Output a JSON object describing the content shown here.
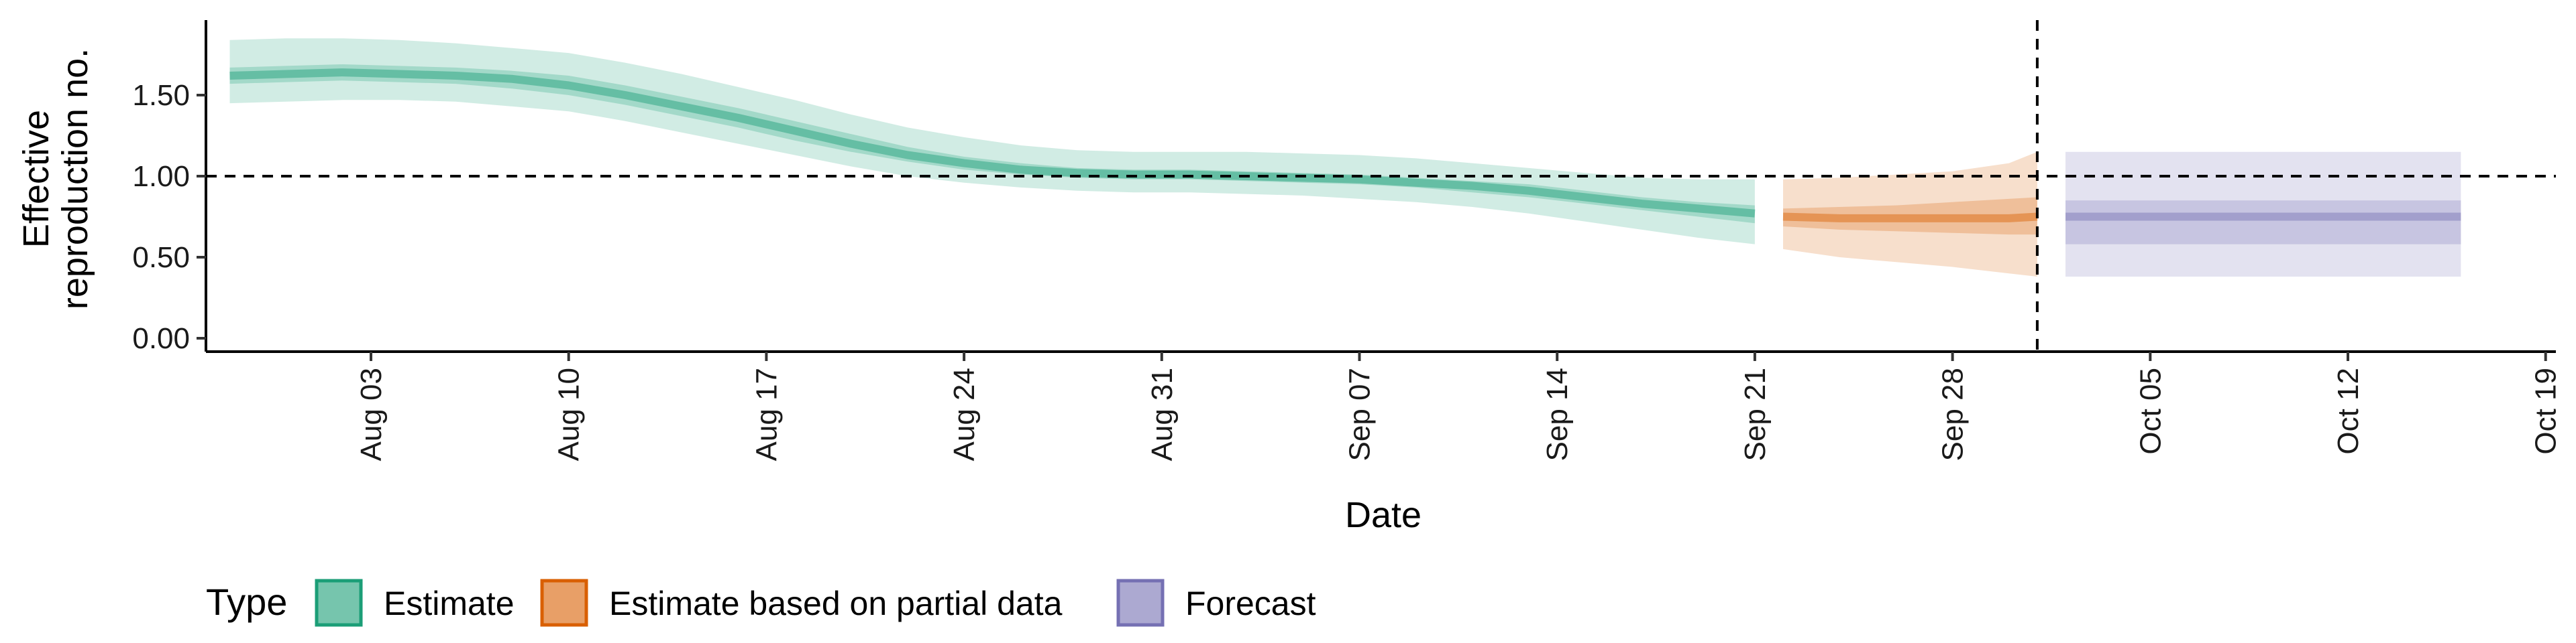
{
  "chart_data": {
    "type": "line",
    "xlabel": "Date",
    "ylabel_lines": [
      "Effective",
      "reproduction no."
    ],
    "ylim": [
      0,
      1.95
    ],
    "xlim": [
      "2021-07-29",
      "2021-10-19"
    ],
    "y_ticks": [
      0,
      0.5,
      1.0,
      1.5
    ],
    "y_tick_labels": [
      "0.00",
      "0.50",
      "1.00",
      "1.50"
    ],
    "x_ticks": [
      "2021-08-03",
      "2021-08-10",
      "2021-08-17",
      "2021-08-24",
      "2021-08-31",
      "2021-09-07",
      "2021-09-14",
      "2021-09-21",
      "2021-09-28",
      "2021-10-05",
      "2021-10-12",
      "2021-10-19"
    ],
    "x_tick_labels": [
      "Aug 03",
      "Aug 10",
      "Aug 17",
      "Aug 24",
      "Aug 31",
      "Sep 07",
      "Sep 14",
      "Sep 21",
      "Sep 28",
      "Oct 05",
      "Oct 12",
      "Oct 19"
    ],
    "reference_hline": 1.0,
    "reference_vline": "2021-10-01",
    "grid": false,
    "legend": {
      "title": "Type",
      "position": "bottom-left",
      "entries": [
        {
          "label": "Estimate",
          "fill": "#1b9e77",
          "color": "#1b9e77"
        },
        {
          "label": "Estimate based on partial data",
          "fill": "#d95f02",
          "color": "#d95f02"
        },
        {
          "label": "Forecast",
          "fill": "#7570b3",
          "color": "#7570b3"
        }
      ]
    },
    "series": [
      {
        "name": "Estimate",
        "color": "#1b9e77",
        "x": [
          "2021-07-29",
          "2021-07-31",
          "2021-08-02",
          "2021-08-04",
          "2021-08-06",
          "2021-08-08",
          "2021-08-10",
          "2021-08-12",
          "2021-08-14",
          "2021-08-16",
          "2021-08-18",
          "2021-08-20",
          "2021-08-22",
          "2021-08-24",
          "2021-08-26",
          "2021-08-28",
          "2021-08-30",
          "2021-09-01",
          "2021-09-03",
          "2021-09-05",
          "2021-09-07",
          "2021-09-09",
          "2021-09-11",
          "2021-09-13",
          "2021-09-15",
          "2021-09-17",
          "2021-09-19",
          "2021-09-21"
        ],
        "median": [
          1.62,
          1.63,
          1.64,
          1.63,
          1.62,
          1.6,
          1.56,
          1.5,
          1.43,
          1.36,
          1.28,
          1.2,
          1.13,
          1.08,
          1.04,
          1.02,
          1.01,
          1.01,
          1.0,
          0.99,
          0.98,
          0.96,
          0.94,
          0.91,
          0.87,
          0.83,
          0.8,
          0.77
        ],
        "inner_lower": [
          1.57,
          1.58,
          1.59,
          1.58,
          1.57,
          1.54,
          1.5,
          1.44,
          1.37,
          1.3,
          1.22,
          1.15,
          1.09,
          1.04,
          1.01,
          0.99,
          0.98,
          0.98,
          0.97,
          0.96,
          0.95,
          0.93,
          0.9,
          0.87,
          0.83,
          0.79,
          0.75,
          0.71
        ],
        "inner_upper": [
          1.67,
          1.68,
          1.69,
          1.68,
          1.67,
          1.65,
          1.62,
          1.56,
          1.49,
          1.42,
          1.34,
          1.26,
          1.18,
          1.12,
          1.08,
          1.05,
          1.04,
          1.04,
          1.03,
          1.02,
          1.01,
          0.99,
          0.97,
          0.95,
          0.91,
          0.87,
          0.84,
          0.82
        ],
        "outer_lower": [
          1.45,
          1.46,
          1.47,
          1.47,
          1.46,
          1.43,
          1.4,
          1.34,
          1.27,
          1.2,
          1.13,
          1.06,
          1.0,
          0.96,
          0.93,
          0.91,
          0.9,
          0.9,
          0.89,
          0.88,
          0.86,
          0.84,
          0.81,
          0.77,
          0.72,
          0.67,
          0.62,
          0.58
        ],
        "outer_upper": [
          1.84,
          1.85,
          1.85,
          1.84,
          1.82,
          1.79,
          1.76,
          1.7,
          1.63,
          1.55,
          1.47,
          1.38,
          1.3,
          1.24,
          1.19,
          1.16,
          1.15,
          1.15,
          1.15,
          1.14,
          1.13,
          1.11,
          1.08,
          1.05,
          1.02,
          0.99,
          0.98,
          0.98
        ]
      },
      {
        "name": "Estimate based on partial data",
        "color": "#d95f02",
        "x": [
          "2021-09-22",
          "2021-09-24",
          "2021-09-26",
          "2021-09-28",
          "2021-09-30",
          "2021-10-01"
        ],
        "median": [
          0.75,
          0.74,
          0.74,
          0.74,
          0.74,
          0.75
        ],
        "inner_lower": [
          0.69,
          0.67,
          0.66,
          0.65,
          0.64,
          0.64
        ],
        "inner_upper": [
          0.8,
          0.81,
          0.82,
          0.84,
          0.86,
          0.87
        ],
        "outer_lower": [
          0.55,
          0.5,
          0.47,
          0.44,
          0.4,
          0.38
        ],
        "outer_upper": [
          0.98,
          0.99,
          1.01,
          1.03,
          1.08,
          1.15
        ]
      },
      {
        "name": "Forecast",
        "color": "#7570b3",
        "x": [
          "2021-10-02",
          "2021-10-16"
        ],
        "median": [
          0.75,
          0.75
        ],
        "inner_lower": [
          0.58,
          0.58
        ],
        "inner_upper": [
          0.85,
          0.85
        ],
        "outer_lower": [
          0.38,
          0.38
        ],
        "outer_upper": [
          1.15,
          1.15
        ]
      }
    ]
  }
}
